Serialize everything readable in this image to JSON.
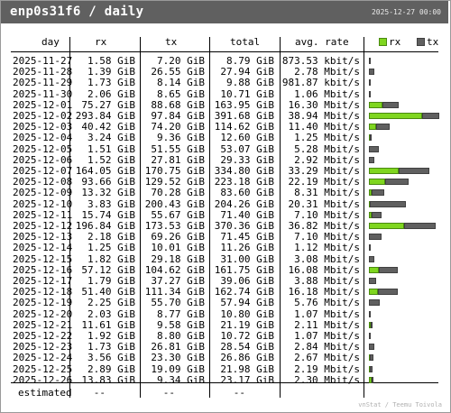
{
  "title": "enp0s31f6 / daily",
  "timestamp": "2025-12-27 00:00",
  "columns": {
    "day": "day",
    "rx": "rx",
    "tx": "tx",
    "total": "total",
    "avg": "avg. rate"
  },
  "legend": {
    "rx": "rx",
    "tx": "tx"
  },
  "colors": {
    "rx": "#7fd61f",
    "tx": "#606060",
    "titlebar": "#606060"
  },
  "rows": [
    {
      "day": "2025-11-27",
      "rx": "1.58 GiB",
      "tx": "7.20 GiB",
      "total": "8.79 GiB",
      "avg": "873.53 kbit/s",
      "rx_gib": 1.58,
      "tx_gib": 7.2
    },
    {
      "day": "2025-11-28",
      "rx": "1.39 GiB",
      "tx": "26.55 GiB",
      "total": "27.94 GiB",
      "avg": "2.78 Mbit/s",
      "rx_gib": 1.39,
      "tx_gib": 26.55
    },
    {
      "day": "2025-11-29",
      "rx": "1.73 GiB",
      "tx": "8.14 GiB",
      "total": "9.88 GiB",
      "avg": "981.87 kbit/s",
      "rx_gib": 1.73,
      "tx_gib": 8.14
    },
    {
      "day": "2025-11-30",
      "rx": "2.06 GiB",
      "tx": "8.65 GiB",
      "total": "10.71 GiB",
      "avg": "1.06 Mbit/s",
      "rx_gib": 2.06,
      "tx_gib": 8.65
    },
    {
      "day": "2025-12-01",
      "rx": "75.27 GiB",
      "tx": "88.68 GiB",
      "total": "163.95 GiB",
      "avg": "16.30 Mbit/s",
      "rx_gib": 75.27,
      "tx_gib": 88.68
    },
    {
      "day": "2025-12-02",
      "rx": "293.84 GiB",
      "tx": "97.84 GiB",
      "total": "391.68 GiB",
      "avg": "38.94 Mbit/s",
      "rx_gib": 293.84,
      "tx_gib": 97.84
    },
    {
      "day": "2025-12-03",
      "rx": "40.42 GiB",
      "tx": "74.20 GiB",
      "total": "114.62 GiB",
      "avg": "11.40 Mbit/s",
      "rx_gib": 40.42,
      "tx_gib": 74.2
    },
    {
      "day": "2025-12-04",
      "rx": "3.24 GiB",
      "tx": "9.36 GiB",
      "total": "12.60 GiB",
      "avg": "1.25 Mbit/s",
      "rx_gib": 3.24,
      "tx_gib": 9.36
    },
    {
      "day": "2025-12-05",
      "rx": "1.51 GiB",
      "tx": "51.55 GiB",
      "total": "53.07 GiB",
      "avg": "5.28 Mbit/s",
      "rx_gib": 1.51,
      "tx_gib": 51.55
    },
    {
      "day": "2025-12-06",
      "rx": "1.52 GiB",
      "tx": "27.81 GiB",
      "total": "29.33 GiB",
      "avg": "2.92 Mbit/s",
      "rx_gib": 1.52,
      "tx_gib": 27.81
    },
    {
      "day": "2025-12-07",
      "rx": "164.05 GiB",
      "tx": "170.75 GiB",
      "total": "334.80 GiB",
      "avg": "33.29 Mbit/s",
      "rx_gib": 164.05,
      "tx_gib": 170.75
    },
    {
      "day": "2025-12-08",
      "rx": "93.66 GiB",
      "tx": "129.52 GiB",
      "total": "223.18 GiB",
      "avg": "22.19 Mbit/s",
      "rx_gib": 93.66,
      "tx_gib": 129.52
    },
    {
      "day": "2025-12-09",
      "rx": "13.32 GiB",
      "tx": "70.28 GiB",
      "total": "83.60 GiB",
      "avg": "8.31 Mbit/s",
      "rx_gib": 13.32,
      "tx_gib": 70.28
    },
    {
      "day": "2025-12-10",
      "rx": "3.83 GiB",
      "tx": "200.43 GiB",
      "total": "204.26 GiB",
      "avg": "20.31 Mbit/s",
      "rx_gib": 3.83,
      "tx_gib": 200.43
    },
    {
      "day": "2025-12-11",
      "rx": "15.74 GiB",
      "tx": "55.67 GiB",
      "total": "71.40 GiB",
      "avg": "7.10 Mbit/s",
      "rx_gib": 15.74,
      "tx_gib": 55.67
    },
    {
      "day": "2025-12-12",
      "rx": "196.84 GiB",
      "tx": "173.53 GiB",
      "total": "370.36 GiB",
      "avg": "36.82 Mbit/s",
      "rx_gib": 196.84,
      "tx_gib": 173.53
    },
    {
      "day": "2025-12-13",
      "rx": "2.18 GiB",
      "tx": "69.26 GiB",
      "total": "71.45 GiB",
      "avg": "7.10 Mbit/s",
      "rx_gib": 2.18,
      "tx_gib": 69.26
    },
    {
      "day": "2025-12-14",
      "rx": "1.25 GiB",
      "tx": "10.01 GiB",
      "total": "11.26 GiB",
      "avg": "1.12 Mbit/s",
      "rx_gib": 1.25,
      "tx_gib": 10.01
    },
    {
      "day": "2025-12-15",
      "rx": "1.82 GiB",
      "tx": "29.18 GiB",
      "total": "31.00 GiB",
      "avg": "3.08 Mbit/s",
      "rx_gib": 1.82,
      "tx_gib": 29.18
    },
    {
      "day": "2025-12-16",
      "rx": "57.12 GiB",
      "tx": "104.62 GiB",
      "total": "161.75 GiB",
      "avg": "16.08 Mbit/s",
      "rx_gib": 57.12,
      "tx_gib": 104.62
    },
    {
      "day": "2025-12-17",
      "rx": "1.79 GiB",
      "tx": "37.27 GiB",
      "total": "39.06 GiB",
      "avg": "3.88 Mbit/s",
      "rx_gib": 1.79,
      "tx_gib": 37.27
    },
    {
      "day": "2025-12-18",
      "rx": "51.40 GiB",
      "tx": "111.34 GiB",
      "total": "162.74 GiB",
      "avg": "16.18 Mbit/s",
      "rx_gib": 51.4,
      "tx_gib": 111.34
    },
    {
      "day": "2025-12-19",
      "rx": "2.25 GiB",
      "tx": "55.70 GiB",
      "total": "57.94 GiB",
      "avg": "5.76 Mbit/s",
      "rx_gib": 2.25,
      "tx_gib": 55.7
    },
    {
      "day": "2025-12-20",
      "rx": "2.03 GiB",
      "tx": "8.77 GiB",
      "total": "10.80 GiB",
      "avg": "1.07 Mbit/s",
      "rx_gib": 2.03,
      "tx_gib": 8.77
    },
    {
      "day": "2025-12-21",
      "rx": "11.61 GiB",
      "tx": "9.58 GiB",
      "total": "21.19 GiB",
      "avg": "2.11 Mbit/s",
      "rx_gib": 11.61,
      "tx_gib": 9.58
    },
    {
      "day": "2025-12-22",
      "rx": "1.92 GiB",
      "tx": "8.80 GiB",
      "total": "10.72 GiB",
      "avg": "1.07 Mbit/s",
      "rx_gib": 1.92,
      "tx_gib": 8.8
    },
    {
      "day": "2025-12-23",
      "rx": "1.73 GiB",
      "tx": "26.81 GiB",
      "total": "28.54 GiB",
      "avg": "2.84 Mbit/s",
      "rx_gib": 1.73,
      "tx_gib": 26.81
    },
    {
      "day": "2025-12-24",
      "rx": "3.56 GiB",
      "tx": "23.30 GiB",
      "total": "26.86 GiB",
      "avg": "2.67 Mbit/s",
      "rx_gib": 3.56,
      "tx_gib": 23.3
    },
    {
      "day": "2025-12-25",
      "rx": "2.89 GiB",
      "tx": "19.09 GiB",
      "total": "21.98 GiB",
      "avg": "2.19 Mbit/s",
      "rx_gib": 2.89,
      "tx_gib": 19.09
    },
    {
      "day": "2025-12-26",
      "rx": "13.83 GiB",
      "tx": "9.34 GiB",
      "total": "23.17 GiB",
      "avg": "2.30 Mbit/s",
      "rx_gib": 13.83,
      "tx_gib": 9.34
    }
  ],
  "estimated": {
    "label": "estimated",
    "rx": "--",
    "tx": "--",
    "total": "--"
  },
  "footer": "vnStat / Teemu Toivola"
}
